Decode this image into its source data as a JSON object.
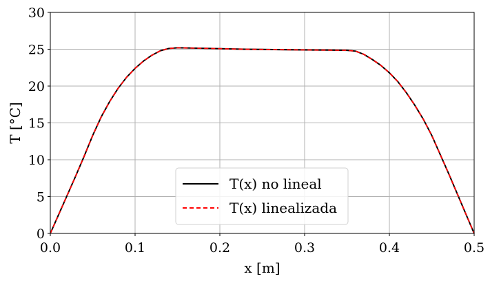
{
  "chart_data": {
    "type": "line",
    "xlabel": "x [m]",
    "ylabel": "T [°C]",
    "xlim": [
      0.0,
      0.5
    ],
    "ylim": [
      0,
      30
    ],
    "x_ticks": [
      "0.0",
      "0.1",
      "0.2",
      "0.3",
      "0.4",
      "0.5"
    ],
    "y_ticks": [
      "0",
      "5",
      "10",
      "15",
      "20",
      "25",
      "30"
    ],
    "grid": true,
    "legend_position": "bottom-center",
    "series": [
      {
        "name": "T(x) no lineal",
        "color": "#000000",
        "style": "solid",
        "x": [
          0.0,
          0.01,
          0.02,
          0.03,
          0.04,
          0.05,
          0.06,
          0.07,
          0.08,
          0.09,
          0.1,
          0.11,
          0.12,
          0.13,
          0.14,
          0.15,
          0.17,
          0.19,
          0.21,
          0.23,
          0.25,
          0.27,
          0.29,
          0.31,
          0.33,
          0.35,
          0.36,
          0.37,
          0.38,
          0.39,
          0.4,
          0.41,
          0.42,
          0.43,
          0.44,
          0.45,
          0.46,
          0.47,
          0.48,
          0.49,
          0.5
        ],
        "y": [
          0.0,
          2.6,
          5.2,
          7.8,
          10.5,
          13.3,
          15.8,
          17.9,
          19.7,
          21.2,
          22.4,
          23.4,
          24.2,
          24.8,
          25.1,
          25.2,
          25.15,
          25.1,
          25.05,
          25.0,
          24.97,
          24.94,
          24.92,
          24.9,
          24.88,
          24.85,
          24.75,
          24.3,
          23.6,
          22.8,
          21.8,
          20.6,
          19.1,
          17.4,
          15.5,
          13.3,
          10.7,
          8.1,
          5.4,
          2.7,
          0.0
        ]
      },
      {
        "name": "T(x) linealizada",
        "color": "#ff0000",
        "style": "dashed",
        "x": [
          0.0,
          0.01,
          0.02,
          0.03,
          0.04,
          0.05,
          0.06,
          0.07,
          0.08,
          0.09,
          0.1,
          0.11,
          0.12,
          0.13,
          0.14,
          0.15,
          0.17,
          0.19,
          0.21,
          0.23,
          0.25,
          0.27,
          0.29,
          0.31,
          0.33,
          0.35,
          0.36,
          0.37,
          0.38,
          0.39,
          0.4,
          0.41,
          0.42,
          0.43,
          0.44,
          0.45,
          0.46,
          0.47,
          0.48,
          0.49,
          0.5
        ],
        "y": [
          0.0,
          2.6,
          5.2,
          7.8,
          10.5,
          13.3,
          15.8,
          17.9,
          19.7,
          21.2,
          22.4,
          23.4,
          24.2,
          24.8,
          25.1,
          25.2,
          25.15,
          25.1,
          25.05,
          25.0,
          24.97,
          24.94,
          24.92,
          24.9,
          24.88,
          24.85,
          24.75,
          24.3,
          23.6,
          22.8,
          21.8,
          20.6,
          19.1,
          17.4,
          15.5,
          13.3,
          10.7,
          8.1,
          5.4,
          2.7,
          0.0
        ]
      }
    ]
  }
}
